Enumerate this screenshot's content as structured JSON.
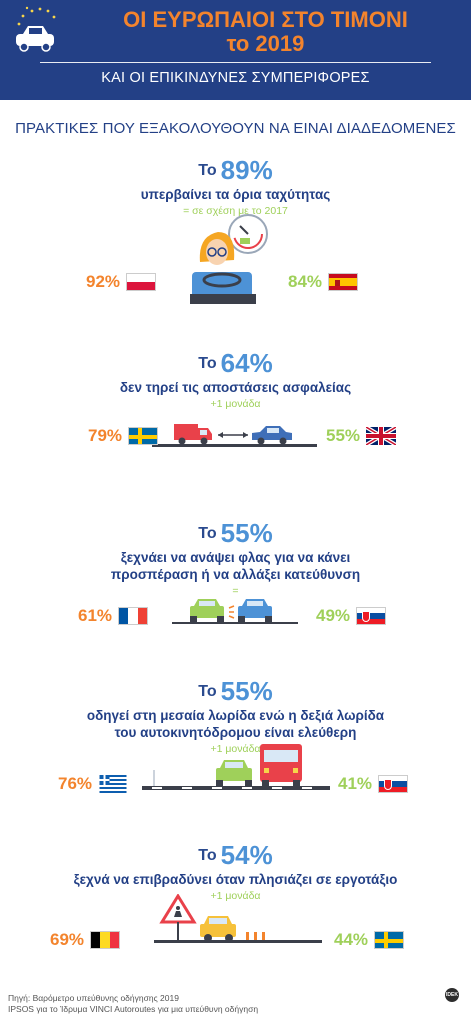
{
  "header": {
    "title_line1": "ΟΙ ΕΥΡΩΠΑΙΟΙ ΣΤΟ ΤΙΜΟΝΙ",
    "title_line2": "το 2019",
    "subtitle": "ΚΑΙ ΟΙ ΕΠΙΚΙΝΔΥΝΕΣ ΣΥΜΠΕΡΙΦΟΡΕΣ",
    "icon": "car-icon"
  },
  "section_title": "ΠΡΑΚΤΙΚΕΣ ΠΟΥ ΕΞΑΚΟΛΟΥΘΟΥΝ ΝΑ ΕΙΝΑΙ ΔΙΑΔΕΔΟΜΕΝΕΣ",
  "items": [
    {
      "to": "Το",
      "percent": "89%",
      "description": [
        "υπερβαίνει τα όρια ταχύτητας"
      ],
      "change": "= σε σχέση με το 2017",
      "left_value": "92%",
      "left_flag": "poland-flag",
      "right_value": "84%",
      "right_flag": "spain-flag",
      "illustration": "driver-speedometer-icon"
    },
    {
      "to": "Το",
      "percent": "64%",
      "description": [
        "δεν τηρεί τις αποστάσεις ασφαλείας"
      ],
      "change": "+1 μονάδα",
      "left_value": "79%",
      "left_flag": "sweden-flag",
      "right_value": "55%",
      "right_flag": "uk-flag",
      "illustration": "truck-car-distance-icon"
    },
    {
      "to": "Το",
      "percent": "55%",
      "description": [
        "ξεχνάει να ανάψει φλας για να κάνει",
        "προσπέραση ή να αλλάξει κατεύθυνση"
      ],
      "change": "=",
      "left_value": "61%",
      "left_flag": "france-flag",
      "right_value": "49%",
      "right_flag": "slovakia-flag",
      "illustration": "cars-indicator-icon"
    },
    {
      "to": "Το",
      "percent": "55%",
      "description": [
        "οδηγεί στη μεσαία λωρίδα ενώ η δεξιά λωρίδα",
        "του αυτοκινητόδρομου είναι ελεύθερη"
      ],
      "change": "+1 μονάδα",
      "left_value": "76%",
      "left_flag": "greece-flag",
      "right_value": "41%",
      "right_flag": "slovakia-flag",
      "illustration": "car-bus-lane-icon"
    },
    {
      "to": "Το",
      "percent": "54%",
      "description": [
        "ξεχνά να επιβραδύνει όταν πλησιάζει σε εργοτάξιο"
      ],
      "change": "+1 μονάδα",
      "left_value": "69%",
      "left_flag": "belgium-flag",
      "right_value": "44%",
      "right_flag": "sweden-flag",
      "illustration": "roadworks-car-icon"
    }
  ],
  "footer": {
    "line1": "Πηγή: Βαρόμετρο υπεύθυνης οδήγησης 2019",
    "line2": "IPSOS για το Ίδρυμα VINCI Autoroutes για μια υπεύθυνη οδήγηση",
    "logo": "IDEK"
  }
}
